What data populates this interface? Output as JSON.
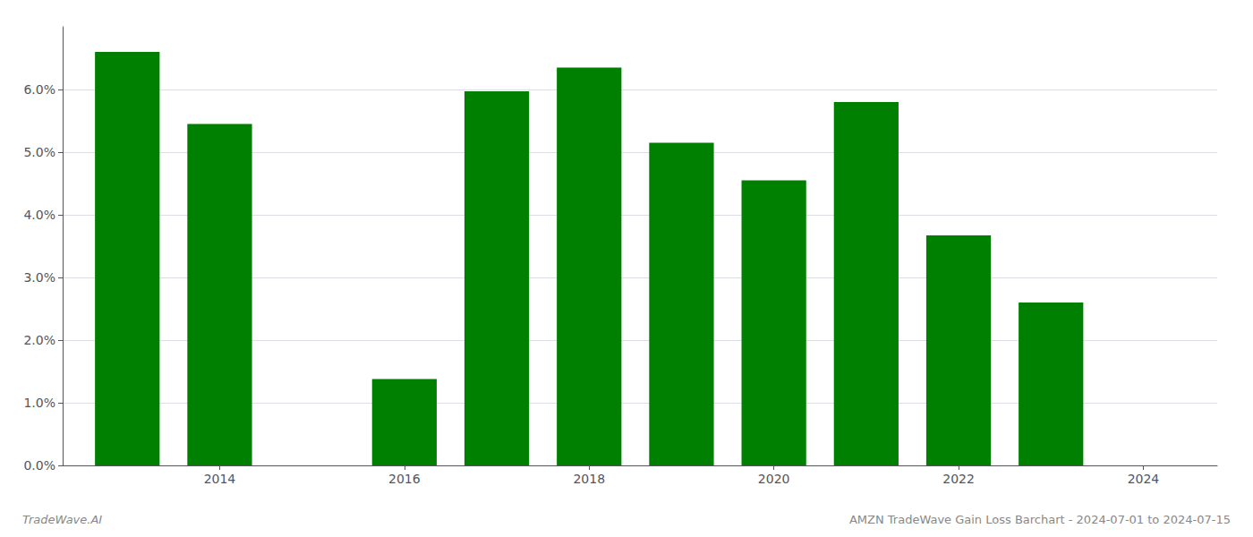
{
  "chart_data": {
    "type": "bar",
    "x": [
      2013,
      2014,
      2016,
      2017,
      2018,
      2019,
      2020,
      2021,
      2022,
      2023
    ],
    "values": [
      0.066,
      0.0545,
      0.0138,
      0.0597,
      0.0635,
      0.0515,
      0.0455,
      0.058,
      0.0367,
      0.026
    ],
    "color": "#008000",
    "xlim": [
      2012.3,
      2024.8
    ],
    "xticks": [
      2014,
      2016,
      2018,
      2020,
      2022,
      2024
    ],
    "ylim": [
      0,
      0.07
    ],
    "yticks": [
      {
        "value": 0.0,
        "label": "0.0%"
      },
      {
        "value": 0.01,
        "label": "1.0%"
      },
      {
        "value": 0.02,
        "label": "2.0%"
      },
      {
        "value": 0.03,
        "label": "3.0%"
      },
      {
        "value": 0.04,
        "label": "4.0%"
      },
      {
        "value": 0.05,
        "label": "5.0%"
      },
      {
        "value": 0.06,
        "label": "6.0%"
      }
    ],
    "grid": true,
    "annotations": [
      "TradeWave.AI",
      "AMZN TradeWave Gain Loss Barchart - 2024-07-01 to 2024-07-15"
    ]
  }
}
